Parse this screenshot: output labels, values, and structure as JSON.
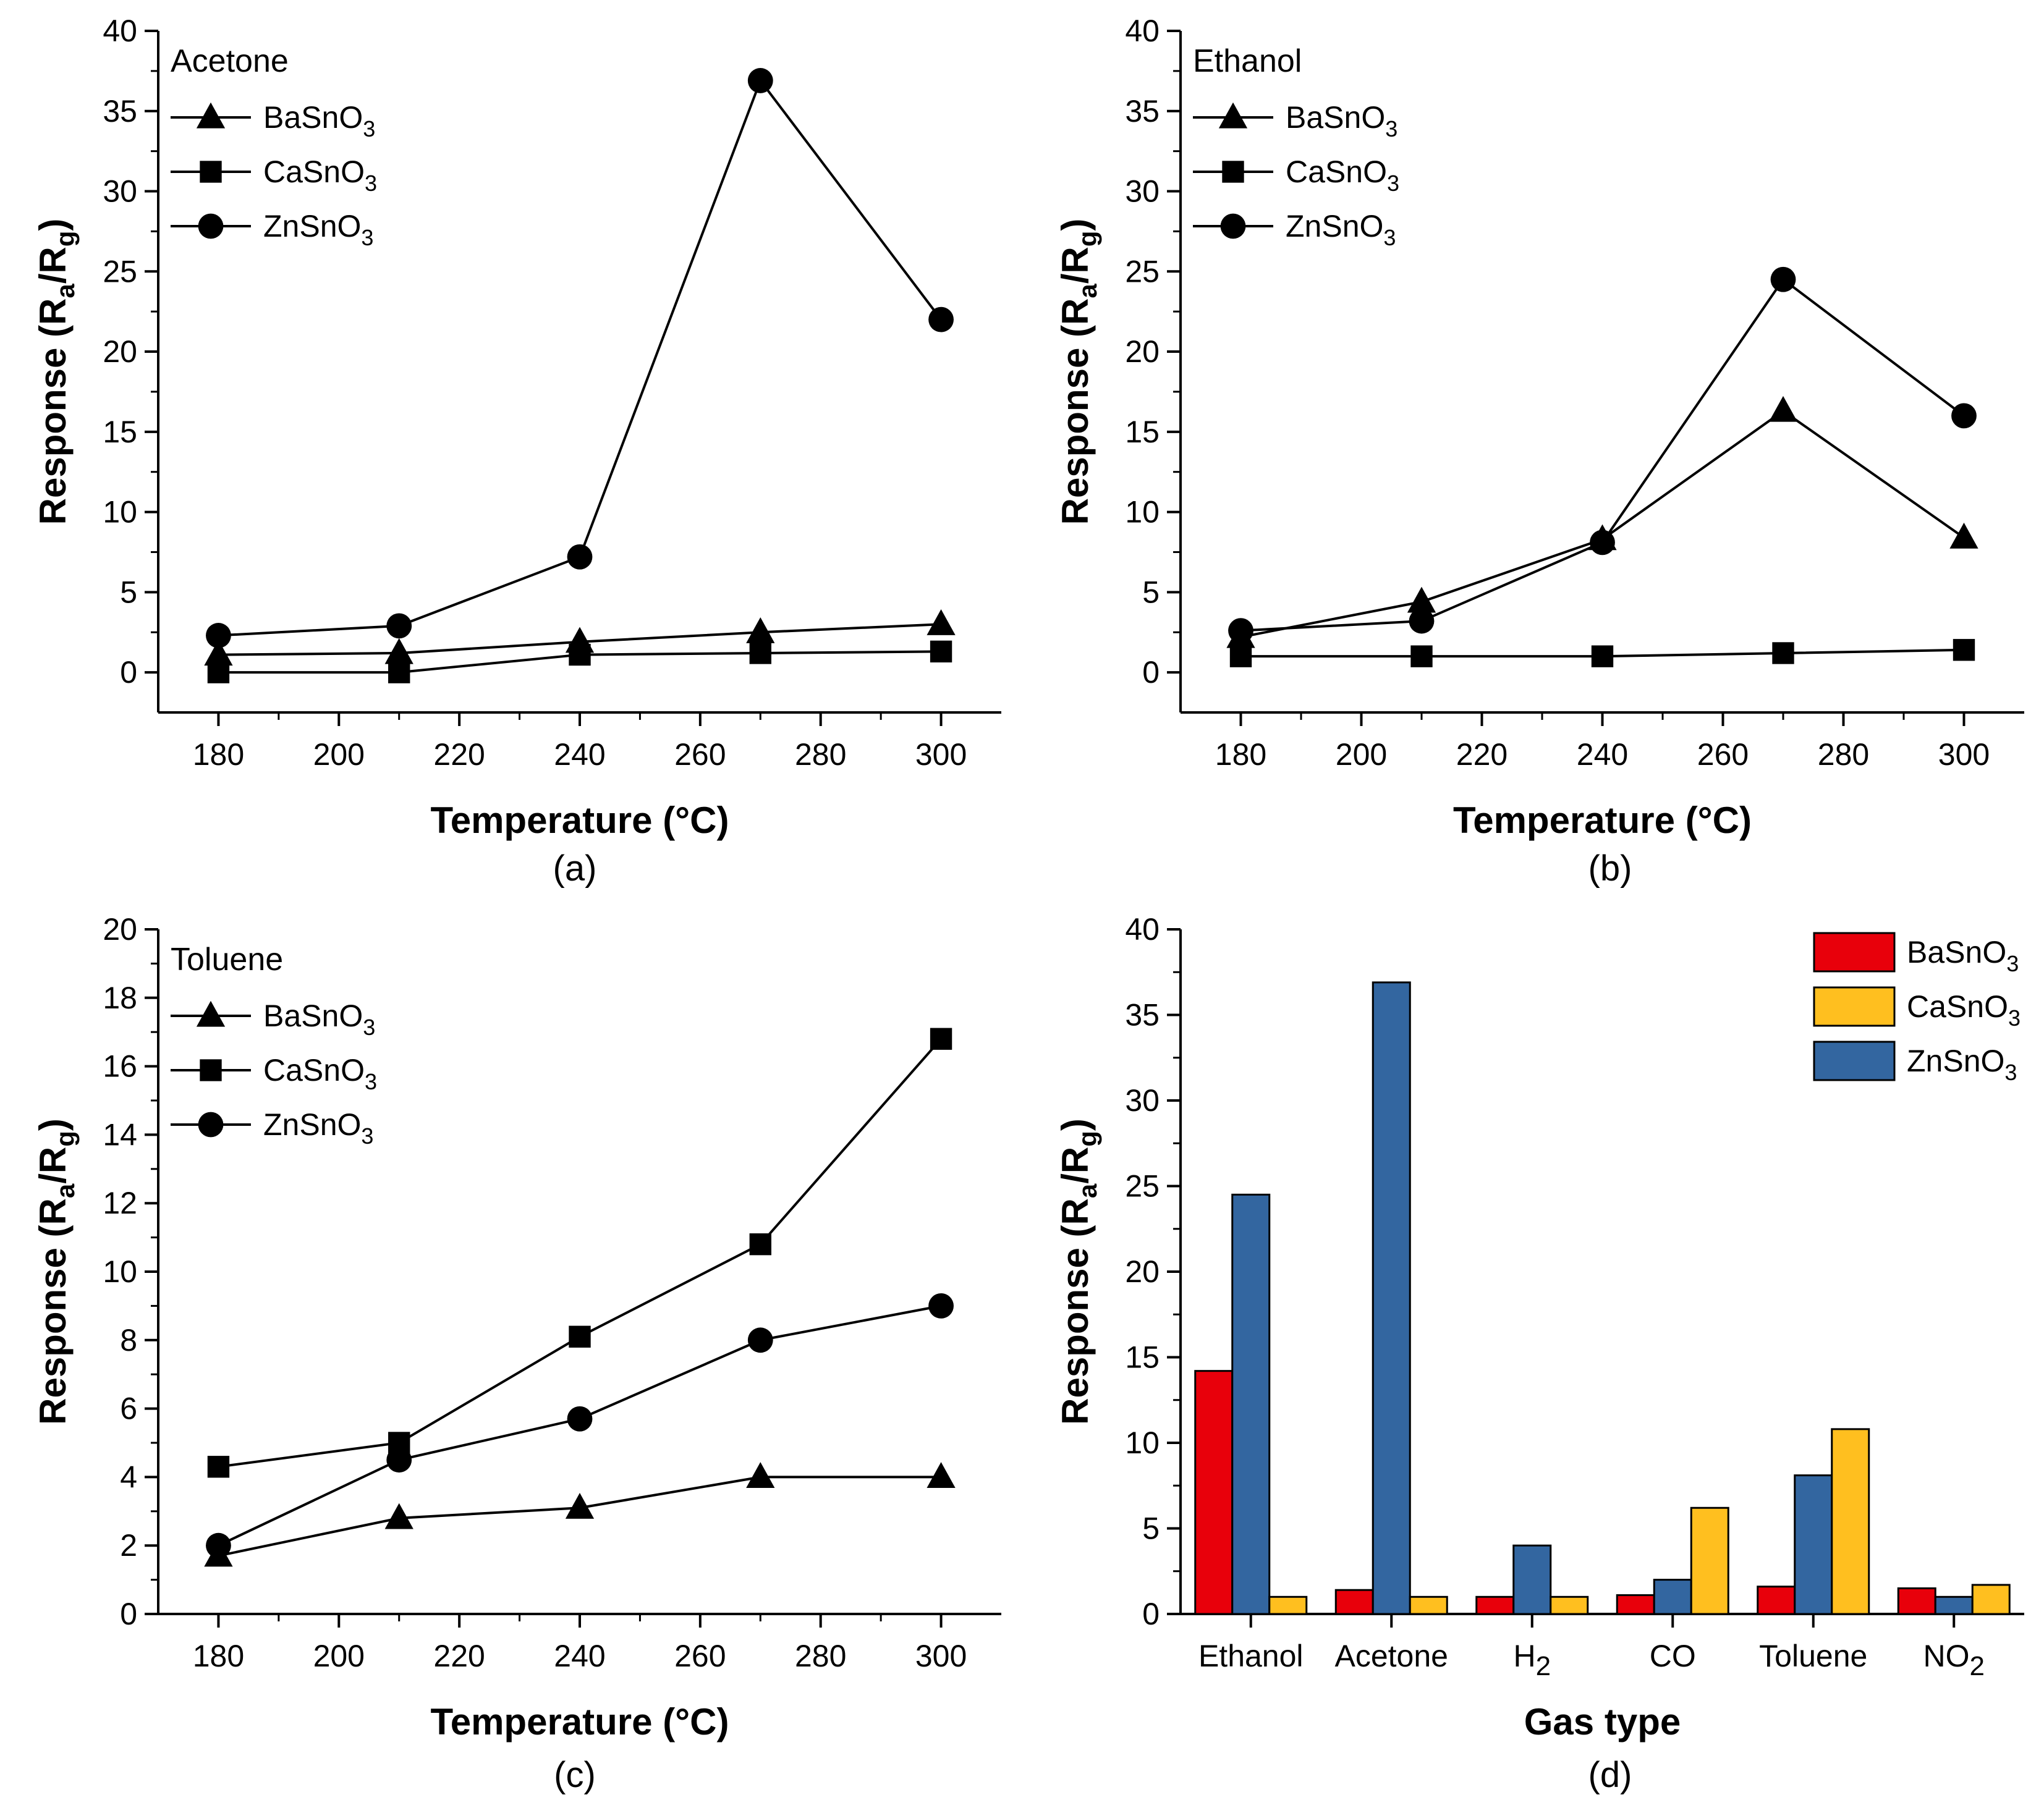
{
  "chart_data": [
    {
      "id": "a",
      "type": "line",
      "panel_label": "(a)",
      "legend_title": "Acetone",
      "xlabel": "Temperature (°C)",
      "ylabel_main": "Response (R",
      "ylabel_sub1": "a",
      "ylabel_mid": "/R",
      "ylabel_sub2": "g",
      "ylabel_end": ")",
      "xlim": [
        170,
        310
      ],
      "ylim": [
        -2.5,
        40
      ],
      "xticks": [
        180,
        200,
        220,
        240,
        260,
        280,
        300
      ],
      "yticks": [
        0,
        5,
        10,
        15,
        20,
        25,
        30,
        35,
        40
      ],
      "x": [
        180,
        210,
        240,
        270,
        300
      ],
      "series": [
        {
          "name": "BaSnO",
          "sub": "3",
          "marker": "triangle",
          "values": [
            1.1,
            1.2,
            1.9,
            2.5,
            3.0
          ]
        },
        {
          "name": "CaSnO",
          "sub": "3",
          "marker": "square",
          "values": [
            0.0,
            0.0,
            1.1,
            1.2,
            1.3
          ]
        },
        {
          "name": "ZnSnO",
          "sub": "3",
          "marker": "circle",
          "values": [
            2.3,
            2.9,
            7.2,
            36.9,
            22.0
          ]
        }
      ]
    },
    {
      "id": "b",
      "type": "line",
      "panel_label": "(b)",
      "legend_title": "Ethanol",
      "xlabel": "Temperature (°C)",
      "ylabel_main": "Response (R",
      "ylabel_sub1": "a",
      "ylabel_mid": "/R",
      "ylabel_sub2": "g",
      "ylabel_end": ")",
      "xlim": [
        170,
        310
      ],
      "ylim": [
        -2.5,
        40
      ],
      "xticks": [
        180,
        200,
        220,
        240,
        260,
        280,
        300
      ],
      "yticks": [
        0,
        5,
        10,
        15,
        20,
        25,
        30,
        35,
        40
      ],
      "x": [
        180,
        210,
        240,
        270,
        300
      ],
      "series": [
        {
          "name": "BaSnO",
          "sub": "3",
          "marker": "triangle",
          "values": [
            2.2,
            4.4,
            8.3,
            16.3,
            8.4
          ]
        },
        {
          "name": "CaSnO",
          "sub": "3",
          "marker": "square",
          "values": [
            1.0,
            1.0,
            1.0,
            1.2,
            1.4
          ]
        },
        {
          "name": "ZnSnO",
          "sub": "3",
          "marker": "circle",
          "values": [
            2.6,
            3.2,
            8.1,
            24.5,
            16.0
          ]
        }
      ]
    },
    {
      "id": "c",
      "type": "line",
      "panel_label": "(c)",
      "legend_title": "Toluene",
      "xlabel": "Temperature (°C)",
      "ylabel_main": "Response (R",
      "ylabel_sub1": "a",
      "ylabel_mid": "/R",
      "ylabel_sub2": "g",
      "ylabel_end": ")",
      "xlim": [
        170,
        310
      ],
      "ylim": [
        0,
        20
      ],
      "xticks": [
        180,
        200,
        220,
        240,
        260,
        280,
        300
      ],
      "yticks": [
        0,
        2,
        4,
        6,
        8,
        10,
        12,
        14,
        16,
        18,
        20
      ],
      "x": [
        180,
        210,
        240,
        270,
        300
      ],
      "series": [
        {
          "name": "BaSnO",
          "sub": "3",
          "marker": "triangle",
          "values": [
            1.7,
            2.8,
            3.1,
            4.0,
            4.0
          ]
        },
        {
          "name": "CaSnO",
          "sub": "3",
          "marker": "square",
          "values": [
            4.3,
            5.0,
            8.1,
            10.8,
            16.8
          ]
        },
        {
          "name": "ZnSnO",
          "sub": "3",
          "marker": "circle",
          "values": [
            2.0,
            4.5,
            5.7,
            8.0,
            9.0
          ]
        }
      ]
    },
    {
      "id": "d",
      "type": "bar",
      "panel_label": "(d)",
      "xlabel": "Gas type",
      "ylabel_main": "Response (R",
      "ylabel_sub1": "a",
      "ylabel_mid": "/R",
      "ylabel_sub2": "g",
      "ylabel_end": ")",
      "ylim": [
        0,
        40
      ],
      "yticks": [
        0,
        5,
        10,
        15,
        20,
        25,
        30,
        35,
        40
      ],
      "categories": [
        {
          "main": "Ethanol",
          "sub": ""
        },
        {
          "main": "Acetone",
          "sub": ""
        },
        {
          "main": "H",
          "sub": "2"
        },
        {
          "main": "CO",
          "sub": ""
        },
        {
          "main": "Toluene",
          "sub": ""
        },
        {
          "main": "NO",
          "sub": "2"
        }
      ],
      "series": [
        {
          "name": "BaSnO",
          "sub": "3",
          "color": "#e8000b",
          "values": [
            14.2,
            1.4,
            1.0,
            1.1,
            1.6,
            1.5
          ]
        },
        {
          "name": "ZnSnO",
          "sub": "3",
          "color": "#3366a0",
          "values": [
            24.5,
            36.9,
            4.0,
            2.0,
            8.1,
            1.0
          ]
        },
        {
          "name": "CaSnO",
          "sub": "3",
          "color": "#ffbf1f",
          "values": [
            1.0,
            1.0,
            1.0,
            6.2,
            10.8,
            1.7
          ]
        }
      ],
      "legend_order": [
        0,
        2,
        1
      ]
    }
  ]
}
